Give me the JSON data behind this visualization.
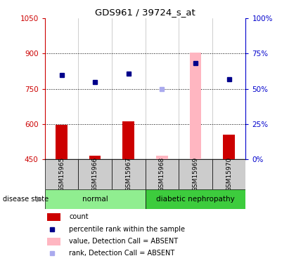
{
  "title": "GDS961 / 39724_s_at",
  "samples": [
    "GSM15965",
    "GSM15966",
    "GSM15967",
    "GSM15968",
    "GSM15969",
    "GSM15970"
  ],
  "count_values": [
    597,
    465,
    610,
    null,
    null,
    555
  ],
  "count_absent": [
    null,
    null,
    null,
    465,
    905,
    null
  ],
  "rank_values": [
    810,
    780,
    815,
    null,
    860,
    790
  ],
  "rank_absent": [
    null,
    null,
    null,
    750,
    null,
    null
  ],
  "ylim_left": [
    450,
    1050
  ],
  "ylim_right": [
    0,
    100
  ],
  "yticks_left": [
    450,
    600,
    750,
    900,
    1050
  ],
  "yticks_right": [
    0,
    25,
    50,
    75,
    100
  ],
  "groups": [
    {
      "label": "normal",
      "indices": [
        0,
        1,
        2
      ],
      "color": "#90EE90"
    },
    {
      "label": "diabetic nephropathy",
      "indices": [
        3,
        4,
        5
      ],
      "color": "#3DCC3D"
    }
  ],
  "bar_width": 0.35,
  "bar_color_present": "#CC0000",
  "bar_color_absent": "#FFB6C1",
  "dot_color_present": "#00008B",
  "dot_color_absent": "#AAAAEE",
  "sample_box_color": "#CCCCCC",
  "left_axis_color": "#CC0000",
  "right_axis_color": "#0000CC",
  "hgrid_values": [
    600,
    750,
    900
  ]
}
